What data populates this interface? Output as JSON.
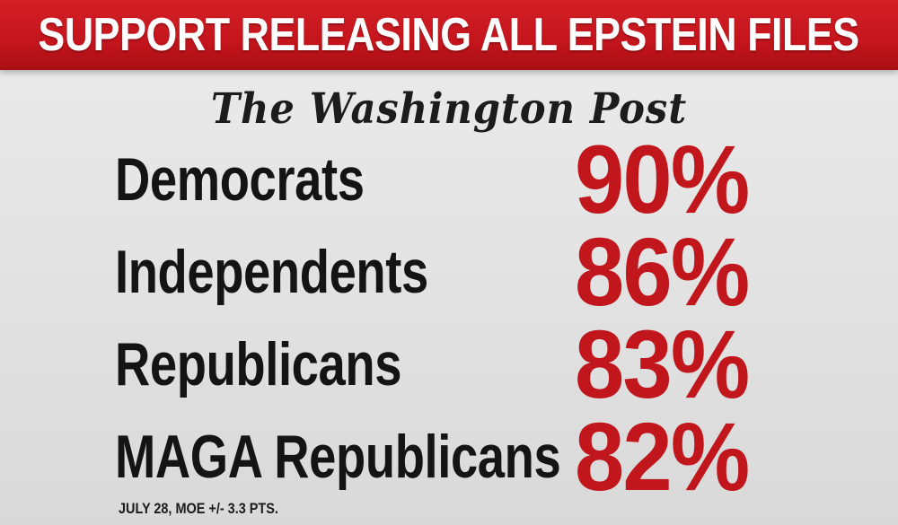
{
  "banner": {
    "title": "SUPPORT RELEASING ALL EPSTEIN FILES",
    "background_color": "#c4141c",
    "text_color": "#ffffff"
  },
  "source": {
    "logo_text": "The Washington Post"
  },
  "chart_data": {
    "type": "table",
    "title": "SUPPORT RELEASING ALL EPSTEIN FILES",
    "value_color": "#c0161c",
    "rows": [
      {
        "label": "Democrats",
        "value": 90,
        "display": "90%"
      },
      {
        "label": "Independents",
        "value": 86,
        "display": "86%"
      },
      {
        "label": "Republicans",
        "value": 83,
        "display": "83%"
      },
      {
        "label": "MAGA Republicans",
        "value": 82,
        "display": "82%"
      }
    ]
  },
  "footnote": "JULY 28, MOE +/- 3.3 PTS."
}
